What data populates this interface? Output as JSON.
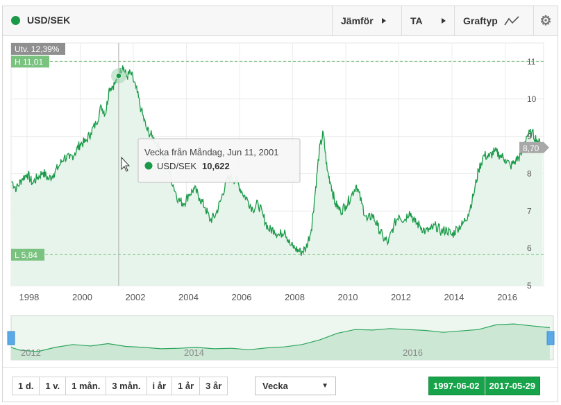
{
  "header": {
    "pair": "USD/SEK",
    "compare_label": "Jämför",
    "ta_label": "TA",
    "charttype_label": "Graftyp"
  },
  "badges": {
    "change": "Utv. 12,39%",
    "high": "H 11,01",
    "low": "L 5,84",
    "last": "8,70"
  },
  "tooltip": {
    "title": "Vecka från Måndag, Jun 11, 2001",
    "series": "USD/SEK",
    "value": "10,622"
  },
  "navigator_labels": [
    "2012",
    "2014",
    "2016"
  ],
  "controls": {
    "periods": [
      "1 d.",
      "1 v.",
      "1 mån.",
      "3 mån.",
      "i år",
      "1 år",
      "3 år"
    ],
    "interval": "Vecka",
    "from": "1997-06-02",
    "to": "2017-05-29"
  },
  "colors": {
    "line": "#1a9a48",
    "area": "#e7f4eb",
    "badge": "#7ac27f",
    "accent": "#17a34a"
  },
  "chart_data": {
    "type": "area",
    "ylim": [
      5,
      11.5
    ],
    "yticks": [
      5,
      6,
      7,
      8,
      9,
      10,
      11
    ],
    "xlim": [
      1997.4,
      2017.45
    ],
    "xticks": [
      "1998",
      "2000",
      "2002",
      "2004",
      "2006",
      "2008",
      "2010",
      "2012",
      "2014",
      "2016"
    ],
    "high": 11.01,
    "low": 5.84,
    "series": [
      {
        "name": "USD/SEK",
        "x": [
          1997.42,
          1997.6,
          1997.8,
          1998.0,
          1998.2,
          1998.4,
          1998.6,
          1998.8,
          1999.0,
          1999.2,
          1999.4,
          1999.6,
          1999.8,
          2000.0,
          2000.2,
          2000.4,
          2000.6,
          2000.8,
          2000.95,
          2001.1,
          2001.3,
          2001.45,
          2001.6,
          2001.75,
          2001.9,
          2002.1,
          2002.3,
          2002.5,
          2002.7,
          2002.9,
          2003.1,
          2003.3,
          2003.5,
          2003.7,
          2003.9,
          2004.1,
          2004.3,
          2004.5,
          2004.7,
          2004.9,
          2005.1,
          2005.3,
          2005.5,
          2005.7,
          2005.9,
          2006.1,
          2006.3,
          2006.5,
          2006.7,
          2006.9,
          2007.1,
          2007.3,
          2007.5,
          2007.7,
          2007.9,
          2008.1,
          2008.3,
          2008.5,
          2008.7,
          2008.85,
          2009.0,
          2009.15,
          2009.3,
          2009.45,
          2009.6,
          2009.8,
          2010.0,
          2010.2,
          2010.4,
          2010.6,
          2010.8,
          2011.0,
          2011.2,
          2011.4,
          2011.6,
          2011.8,
          2012.0,
          2012.2,
          2012.4,
          2012.6,
          2012.8,
          2013.0,
          2013.2,
          2013.4,
          2013.6,
          2013.8,
          2014.0,
          2014.2,
          2014.4,
          2014.6,
          2014.8,
          2015.0,
          2015.2,
          2015.4,
          2015.6,
          2015.8,
          2016.0,
          2016.2,
          2016.4,
          2016.6,
          2016.8,
          2017.0,
          2017.2,
          2017.41
        ],
        "values": [
          7.8,
          7.6,
          7.85,
          8.0,
          7.75,
          7.9,
          8.05,
          7.85,
          8.0,
          8.2,
          8.45,
          8.4,
          8.55,
          8.8,
          8.85,
          9.1,
          9.35,
          9.8,
          9.6,
          10.3,
          10.4,
          10.62,
          10.9,
          10.6,
          10.7,
          10.3,
          9.7,
          9.2,
          9.0,
          8.8,
          8.5,
          8.2,
          7.7,
          7.3,
          7.2,
          7.45,
          7.6,
          7.35,
          7.1,
          6.75,
          6.9,
          7.3,
          7.8,
          7.9,
          7.8,
          7.5,
          7.3,
          7.05,
          7.2,
          6.85,
          6.5,
          6.5,
          6.35,
          6.5,
          6.1,
          6.0,
          5.9,
          6.0,
          6.5,
          7.5,
          8.6,
          9.1,
          8.1,
          7.7,
          7.2,
          7.0,
          7.15,
          7.4,
          7.7,
          7.2,
          6.75,
          6.9,
          6.6,
          6.3,
          6.15,
          6.6,
          6.9,
          6.75,
          7.0,
          6.7,
          6.6,
          6.45,
          6.5,
          6.6,
          6.45,
          6.5,
          6.35,
          6.55,
          6.65,
          6.9,
          7.4,
          8.1,
          8.5,
          8.45,
          8.6,
          8.5,
          8.4,
          8.2,
          8.35,
          8.5,
          9.0,
          9.1,
          8.9,
          8.7
        ]
      }
    ]
  }
}
